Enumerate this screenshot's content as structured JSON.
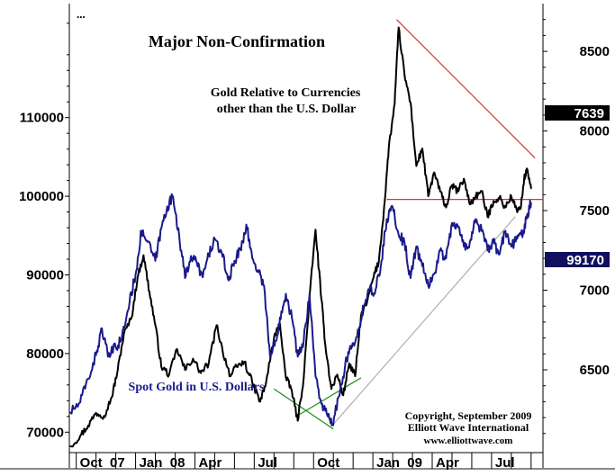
{
  "chart_data": {
    "type": "line",
    "title": "Major Non-Confirmation",
    "right_axis": {
      "label_series": "Gold Relative to Currencies other than the U.S. Dollar",
      "ticks": [
        "8500",
        "8000",
        "7500",
        "7000",
        "6500"
      ],
      "tick_values": [
        8500,
        8000,
        7500,
        7000,
        6500
      ],
      "ylim": [
        5980,
        8800
      ],
      "last_value": "7639"
    },
    "left_axis": {
      "ticks": [
        "110000",
        "100000",
        "90000",
        "80000",
        "70000"
      ],
      "tick_values": [
        110000,
        100000,
        90000,
        80000,
        70000
      ],
      "ylim": [
        67400,
        124500
      ],
      "last_value": "99170"
    },
    "x_axis": {
      "labels": [
        "Oct  07",
        "Jan  08",
        "Apr",
        "Jul",
        "Oct",
        "Jan  09",
        "Apr",
        "Jul"
      ],
      "label_months": [
        0,
        3,
        6,
        9,
        12,
        15,
        18,
        21
      ],
      "range_months": [
        -0.35,
        23.6
      ]
    },
    "series": [
      {
        "name": "Gold Relative to Currencies other than the U.S. Dollar",
        "axis": "right",
        "color": "#000000",
        "points": [
          [
            -0.3,
            6020
          ],
          [
            0.2,
            6085
          ],
          [
            0.6,
            6150
          ],
          [
            1.0,
            6230
          ],
          [
            1.4,
            6210
          ],
          [
            1.8,
            6330
          ],
          [
            2.1,
            6500
          ],
          [
            2.4,
            6720
          ],
          [
            2.8,
            6830
          ],
          [
            3.1,
            7080
          ],
          [
            3.4,
            7220
          ],
          [
            3.7,
            6990
          ],
          [
            4.0,
            6780
          ],
          [
            4.3,
            6520
          ],
          [
            4.7,
            6470
          ],
          [
            5.1,
            6630
          ],
          [
            5.5,
            6500
          ],
          [
            5.9,
            6570
          ],
          [
            6.3,
            6480
          ],
          [
            6.7,
            6540
          ],
          [
            7.1,
            6780
          ],
          [
            7.4,
            6620
          ],
          [
            7.8,
            6460
          ],
          [
            8.1,
            6520
          ],
          [
            8.5,
            6550
          ],
          [
            8.9,
            6420
          ],
          [
            9.3,
            6300
          ],
          [
            9.6,
            6420
          ],
          [
            10.0,
            6700
          ],
          [
            10.3,
            6790
          ],
          [
            10.6,
            6450
          ],
          [
            10.9,
            6370
          ],
          [
            11.2,
            6180
          ],
          [
            11.5,
            6450
          ],
          [
            11.8,
            6960
          ],
          [
            12.1,
            7380
          ],
          [
            12.4,
            6940
          ],
          [
            12.6,
            6650
          ],
          [
            12.9,
            6380
          ],
          [
            13.2,
            6470
          ],
          [
            13.5,
            6340
          ],
          [
            13.8,
            6540
          ],
          [
            14.1,
            6460
          ],
          [
            14.4,
            6840
          ],
          [
            14.7,
            6920
          ],
          [
            15.0,
            7070
          ],
          [
            15.3,
            7180
          ],
          [
            15.6,
            7560
          ],
          [
            15.8,
            7890
          ],
          [
            16.1,
            8170
          ],
          [
            16.3,
            8650
          ],
          [
            16.6,
            8350
          ],
          [
            16.9,
            8180
          ],
          [
            17.2,
            7780
          ],
          [
            17.5,
            7890
          ],
          [
            17.8,
            7590
          ],
          [
            18.1,
            7740
          ],
          [
            18.4,
            7620
          ],
          [
            18.7,
            7520
          ],
          [
            19.0,
            7660
          ],
          [
            19.3,
            7620
          ],
          [
            19.6,
            7700
          ],
          [
            19.9,
            7540
          ],
          [
            20.2,
            7590
          ],
          [
            20.5,
            7620
          ],
          [
            20.8,
            7460
          ],
          [
            21.1,
            7560
          ],
          [
            21.4,
            7580
          ],
          [
            21.7,
            7520
          ],
          [
            22.0,
            7590
          ],
          [
            22.3,
            7490
          ],
          [
            22.5,
            7540
          ],
          [
            22.65,
            7700
          ],
          [
            22.8,
            7760
          ],
          [
            23.0,
            7639
          ]
        ]
      },
      {
        "name": "Spot Gold in U.S. Dollars",
        "axis": "left",
        "color": "#1a1a8c",
        "points": [
          [
            -0.3,
            72500
          ],
          [
            0.2,
            73800
          ],
          [
            0.6,
            76800
          ],
          [
            1.0,
            79800
          ],
          [
            1.3,
            83200
          ],
          [
            1.6,
            79600
          ],
          [
            2.0,
            80800
          ],
          [
            2.3,
            81900
          ],
          [
            2.7,
            86600
          ],
          [
            3.0,
            90100
          ],
          [
            3.3,
            95600
          ],
          [
            3.6,
            94200
          ],
          [
            4.0,
            91800
          ],
          [
            4.3,
            95900
          ],
          [
            4.6,
            98700
          ],
          [
            4.9,
            99900
          ],
          [
            5.2,
            95100
          ],
          [
            5.5,
            89600
          ],
          [
            5.8,
            92400
          ],
          [
            6.1,
            91500
          ],
          [
            6.4,
            89700
          ],
          [
            6.7,
            92600
          ],
          [
            7.0,
            94600
          ],
          [
            7.4,
            92300
          ],
          [
            7.7,
            89300
          ],
          [
            8.0,
            91800
          ],
          [
            8.3,
            93200
          ],
          [
            8.6,
            96400
          ],
          [
            8.9,
            92100
          ],
          [
            9.2,
            90600
          ],
          [
            9.5,
            88600
          ],
          [
            9.8,
            79600
          ],
          [
            10.1,
            81600
          ],
          [
            10.3,
            84600
          ],
          [
            10.6,
            87600
          ],
          [
            10.9,
            84600
          ],
          [
            11.2,
            79600
          ],
          [
            11.5,
            81600
          ],
          [
            11.8,
            87600
          ],
          [
            12.1,
            77100
          ],
          [
            12.4,
            73600
          ],
          [
            12.7,
            72100
          ],
          [
            12.95,
            70900
          ],
          [
            13.3,
            74600
          ],
          [
            13.6,
            78600
          ],
          [
            13.9,
            80600
          ],
          [
            14.2,
            82100
          ],
          [
            14.5,
            86100
          ],
          [
            14.8,
            88100
          ],
          [
            15.1,
            87600
          ],
          [
            15.4,
            91100
          ],
          [
            15.7,
            97100
          ],
          [
            16.0,
            98600
          ],
          [
            16.3,
            95100
          ],
          [
            16.6,
            94100
          ],
          [
            16.9,
            89600
          ],
          [
            17.2,
            93600
          ],
          [
            17.5,
            91100
          ],
          [
            17.8,
            88600
          ],
          [
            18.1,
            90100
          ],
          [
            18.4,
            93100
          ],
          [
            18.7,
            92100
          ],
          [
            19.0,
            96600
          ],
          [
            19.3,
            96100
          ],
          [
            19.6,
            93600
          ],
          [
            19.9,
            94100
          ],
          [
            20.2,
            97100
          ],
          [
            20.5,
            95600
          ],
          [
            20.8,
            93100
          ],
          [
            21.1,
            94100
          ],
          [
            21.4,
            92600
          ],
          [
            21.7,
            95600
          ],
          [
            22.0,
            93600
          ],
          [
            22.3,
            94600
          ],
          [
            22.6,
            95600
          ],
          [
            22.8,
            97600
          ],
          [
            23.0,
            99170
          ]
        ]
      }
    ],
    "annotations": {
      "top_label_line1": "Gold Relative to Currencies",
      "top_label_line2": "other than the U.S. Dollar",
      "bottom_label": "Spot Gold in U.S. Dollars",
      "copyright_line1": "Copyright, September 2009",
      "copyright_line2": "Elliott Wave International",
      "copyright_line3": "www.elliottwave.com",
      "corner_mark": "..."
    },
    "trendlines": [
      {
        "name": "top-resistance",
        "axis": "right",
        "color": "#e03030",
        "from": [
          16.2,
          8700
        ],
        "to": [
          23.2,
          7830
        ]
      },
      {
        "name": "top-support",
        "axis": "right",
        "color": "#1a8c1a",
        "from": [
          11.3,
          6220
        ],
        "to": [
          14.4,
          6450
        ]
      },
      {
        "name": "bottom-resistance",
        "axis": "left",
        "color": "#e03030",
        "from": [
          15.7,
          99600
        ],
        "to": [
          23.6,
          99600
        ]
      },
      {
        "name": "bottom-support",
        "axis": "left",
        "color": "#1a8c1a",
        "from": [
          10.0,
          75500
        ],
        "to": [
          13.0,
          70400
        ]
      },
      {
        "name": "bottom-rising",
        "axis": "left",
        "color": "#b0b0b0",
        "from": [
          13.0,
          71000
        ],
        "to": [
          22.2,
          97400
        ]
      }
    ],
    "colors": {
      "top_series": "#000000",
      "bottom_series": "#1a1a8c",
      "tag_top_bg": "#000000",
      "tag_bottom_bg": "#10105e",
      "tag_text": "#ffffff",
      "resistance": "#e03030",
      "support": "#1a8c1a"
    }
  }
}
